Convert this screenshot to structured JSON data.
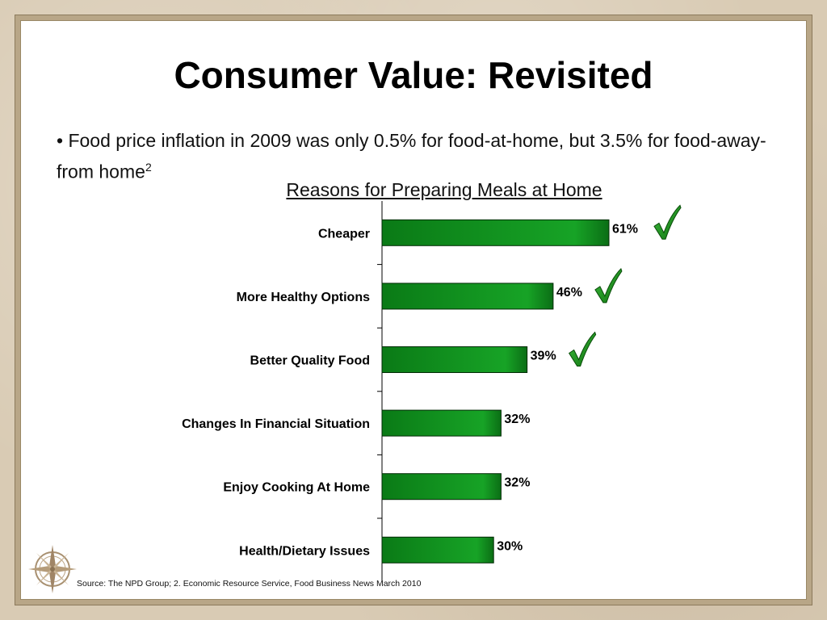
{
  "slide": {
    "title": "Consumer Value: Revisited",
    "bullet_text": "Food price inflation in 2009 was only 0.5% for food-at-home, but 3.5% for food-away-from home",
    "bullet_superscript": "2",
    "source": "Source:  The NPD Group; 2. Economic Resource Service, Food Business News March 2010"
  },
  "icons": {
    "bullet": "bullet-dot",
    "checkmark": "green-checkmark-icon",
    "logo": "compass-rose-icon"
  },
  "colors": {
    "bar_fill": "#0f8a1c",
    "bar_dark": "#045a0d",
    "check_green": "#1e8f1e"
  },
  "chart_data": {
    "type": "bar",
    "orientation": "horizontal",
    "title": "Reasons for Preparing Meals at Home",
    "categories": [
      "Cheaper",
      "More Healthy Options",
      "Better Quality Food",
      "Changes In Financial Situation",
      "Enjoy Cooking At Home",
      "Health/Dietary Issues"
    ],
    "values": [
      61,
      46,
      39,
      32,
      32,
      30
    ],
    "value_labels": [
      "61%",
      "46%",
      "39%",
      "32%",
      "32%",
      "30%"
    ],
    "checked": [
      true,
      true,
      true,
      false,
      false,
      false
    ],
    "xlim": [
      0,
      100
    ],
    "grid": false
  }
}
